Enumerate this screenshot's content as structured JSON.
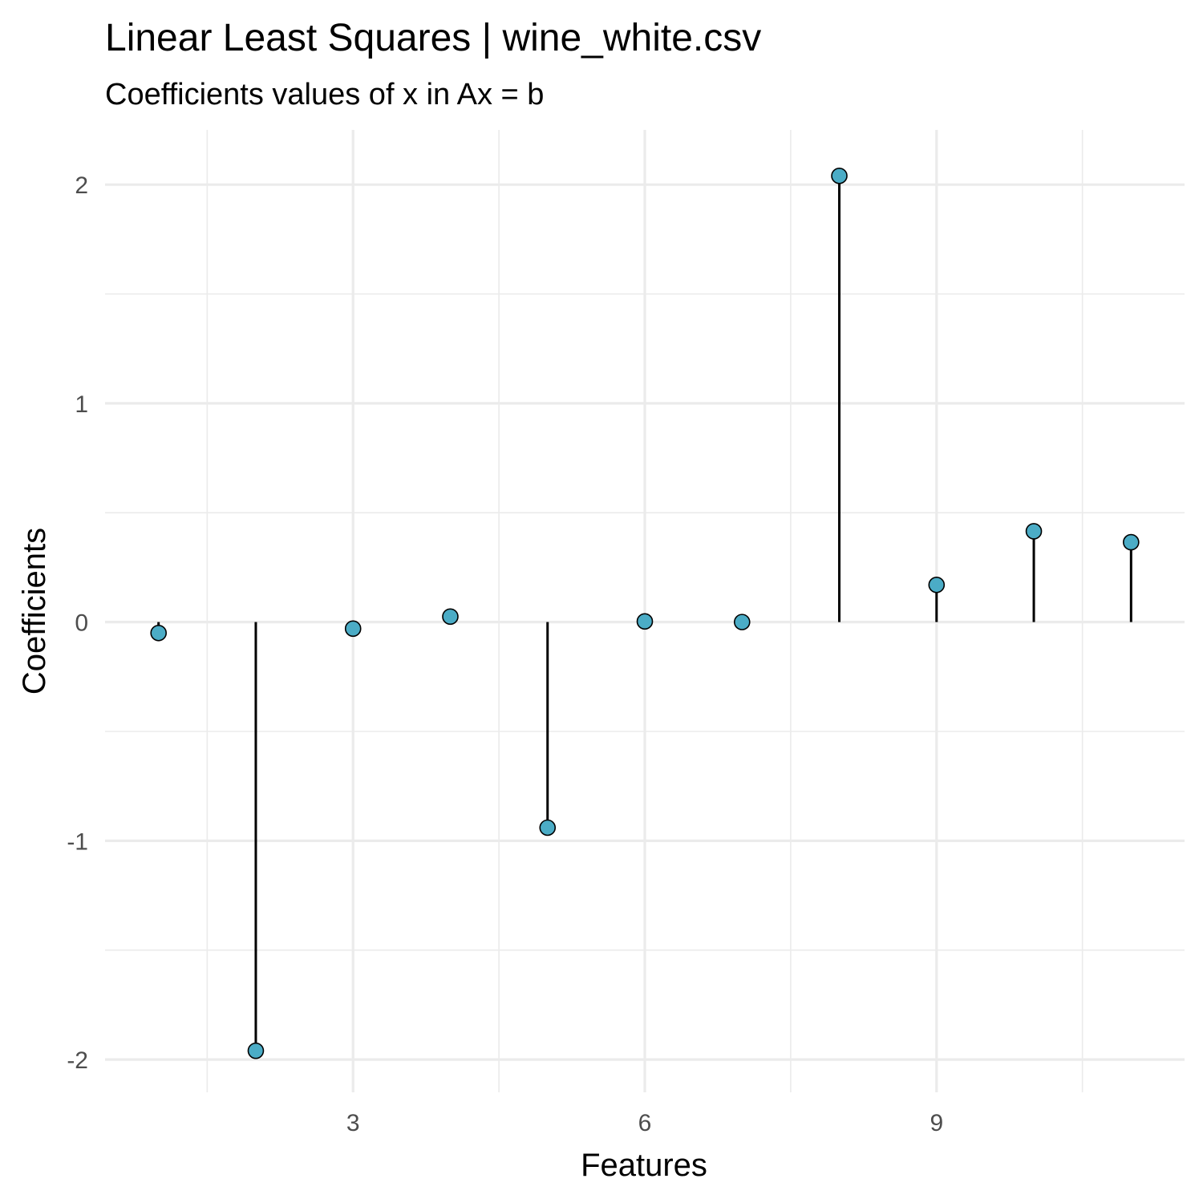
{
  "chart_data": {
    "type": "lollipop",
    "title": "Linear Least Squares | wine_white.csv",
    "subtitle": "Coefficients values of x in Ax = b",
    "xlabel": "Features",
    "ylabel": "Coefficients",
    "x": [
      1,
      2,
      3,
      4,
      5,
      6,
      7,
      8,
      9,
      10,
      11
    ],
    "values": [
      -0.05,
      -1.96,
      -0.03,
      0.025,
      -0.94,
      0.003,
      0.0,
      2.04,
      0.17,
      0.415,
      0.365
    ],
    "xlim": [
      0.45,
      11.55
    ],
    "ylim": [
      -2.15,
      2.25
    ],
    "x_ticks": [
      3,
      6,
      9
    ],
    "x_tick_labels": [
      "3",
      "6",
      "9"
    ],
    "y_ticks": [
      -2,
      -1,
      0,
      1,
      2
    ],
    "y_tick_labels": [
      "-2",
      "-1",
      "0",
      "1",
      "2"
    ],
    "grid": true,
    "point_color": "#4bacc6",
    "stem_color": "#000000",
    "legend": "none"
  }
}
